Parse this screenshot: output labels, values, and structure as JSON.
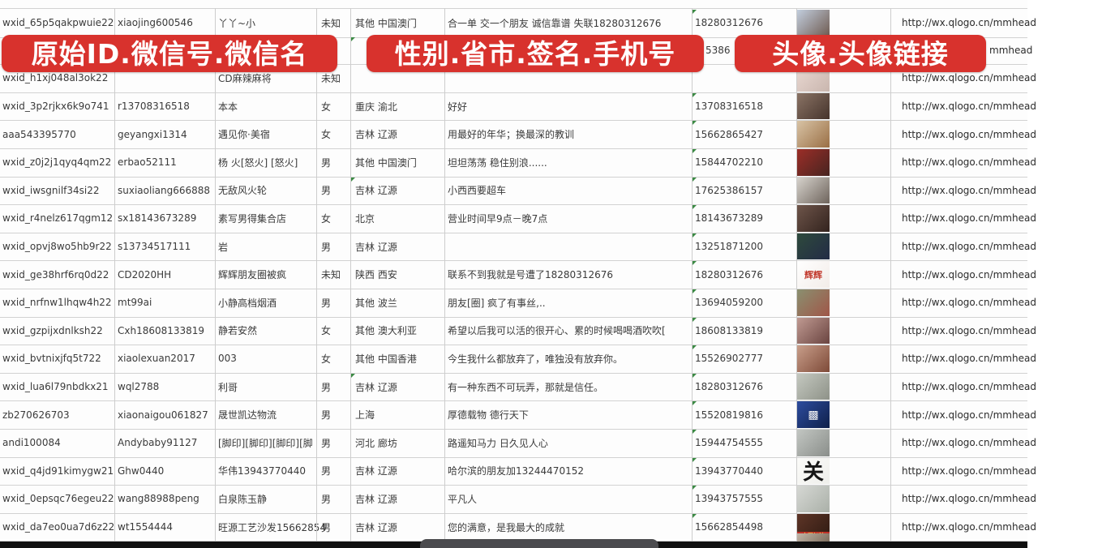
{
  "banners": [
    {
      "label": "原始ID.微信号.微信名"
    },
    {
      "label": "性别.省市.签名.手机号"
    },
    {
      "label": "头像.头像链接"
    }
  ],
  "banner_color": "#d8322d",
  "columns": [
    "原始ID",
    "微信号",
    "微信名",
    "性别",
    "省市",
    "签名",
    "手机号",
    "头像",
    "头像链接"
  ],
  "row2_fragments": {
    "phone_tail": "5386",
    "url_tail": "mmhead"
  },
  "rows": [
    {
      "id": "wxid_65p5qakpwuie22",
      "alias": "xiaojing600546",
      "name": "丫丫~小",
      "gender": "未知",
      "region": "其他 中国澳门",
      "signature": "合一单 交一个朋友 诚信靠谱 失联18280312676",
      "phone": "18280312676",
      "url": "http://wx.qlogo.cn/mmhead",
      "phone_mark": true,
      "avatar": {
        "c1": "#c2cede",
        "c2": "#6e5a50"
      }
    },
    {
      "hidden_by_banner": true,
      "id": "",
      "alias": "",
      "name": "",
      "gender": "",
      "region": "",
      "signature": "",
      "phone": "5386",
      "url": "mmhead",
      "phone_mark": false,
      "region_mark": true,
      "avatar": {
        "c1": "#3f63b0",
        "c2": "#7c90c0"
      }
    },
    {
      "id": "wxid_h1xj048al3ok22",
      "alias": "",
      "name": "CD麻辣麻将",
      "gender": "未知",
      "region": "",
      "signature": "",
      "phone": "",
      "url": "http://wx.qlogo.cn/mmhead",
      "phone_mark": false,
      "avatar": {
        "c1": "#ead9d3",
        "c2": "#c9b6ae"
      }
    },
    {
      "id": "wxid_3p2rjkx6k9o741",
      "alias": "r13708316518",
      "name": "本本",
      "gender": "女",
      "region": "重庆 渝北",
      "signature": "好好",
      "phone": "13708316518",
      "url": "http://wx.qlogo.cn/mmhead",
      "phone_mark": true,
      "avatar": {
        "c1": "#8a7365",
        "c2": "#46342c"
      }
    },
    {
      "id": "aaa543395770",
      "alias": "geyangxi1314",
      "name": "遇见你·美宿",
      "gender": "女",
      "region": "吉林 辽源",
      "signature": "用最好的年华；换最深的教训",
      "phone": "15662865427",
      "url": "http://wx.qlogo.cn/mmhead",
      "phone_mark": true,
      "avatar": {
        "c1": "#d8c3a5",
        "c2": "#9a6f45"
      }
    },
    {
      "id": "wxid_z0j2j1qyq4qm22",
      "alias": "erbao52111",
      "name": "杨 火[怒火] [怒火]",
      "gender": "男",
      "region": "其他 中国澳门",
      "signature": "坦坦荡荡 稳住别浪......",
      "phone": "15844702210",
      "url": "http://wx.qlogo.cn/mmhead",
      "phone_mark": true,
      "avatar": {
        "c1": "#9c2e28",
        "c2": "#472420"
      }
    },
    {
      "id": "wxid_iwsgnilf34si22",
      "alias": "suxiaoliang666888",
      "name": "无敌风火轮",
      "gender": "男",
      "region": "吉林 辽源",
      "signature": "小西西要超车",
      "phone": "17625386157",
      "url": "http://wx.qlogo.cn/mmhead",
      "phone_mark": true,
      "region_mark": true,
      "avatar": {
        "c1": "#d6d2cc",
        "c2": "#6e645c"
      }
    },
    {
      "id": "wxid_r4nelz617qgm12",
      "alias": "sx18143673289",
      "name": "素写男得集合店",
      "gender": "女",
      "region": "北京",
      "signature": "营业时间早9点－晚7点",
      "phone": "18143673289",
      "url": "http://wx.qlogo.cn/mmhead",
      "phone_mark": true,
      "avatar": {
        "c1": "#6e554a",
        "c2": "#33231e"
      }
    },
    {
      "id": "wxid_opvj8wo5hb9r22",
      "alias": "s13734517111",
      "name": "岩",
      "gender": "男",
      "region": "吉林 辽源",
      "signature": "",
      "phone": "13251871200",
      "url": "http://wx.qlogo.cn/mmhead",
      "phone_mark": true,
      "avatar": {
        "c1": "#2e4a3c",
        "c2": "#232b46"
      }
    },
    {
      "id": "wxid_ge38hrf6rq0d22",
      "alias": "CD2020HH",
      "name": "辉辉朋友圈被疯",
      "gender": "未知",
      "region": "陕西 西安",
      "signature": "联系不到我就是号遭了18280312676",
      "phone": "18280312676",
      "url": "http://wx.qlogo.cn/mmhead",
      "phone_mark": true,
      "avatar": {
        "c1": "#ffffff",
        "c2": "#f2ece8",
        "text": "辉辉",
        "tc": "#c23a2e",
        "fs": 11
      }
    },
    {
      "id": "wxid_nrfnw1lhqw4h22",
      "alias": "mt99ai",
      "name": "小静高档烟酒",
      "gender": "男",
      "region": "其他 波兰",
      "signature": "朋友[圈] 疯了有事丝,..",
      "phone": "13694059200",
      "url": "http://wx.qlogo.cn/mmhead",
      "phone_mark": true,
      "avatar": {
        "c1": "#8a9070",
        "c2": "#a05648"
      }
    },
    {
      "id": "wxid_gzpijxdnlksh22",
      "alias": "Cxh18608133819",
      "name": "静若安然",
      "gender": "女",
      "region": "其他 澳大利亚",
      "signature": "希望以后我可以活的很开心、累的时候喝喝酒吹吹[",
      "phone": "18608133819",
      "url": "http://wx.qlogo.cn/mmhead",
      "phone_mark": true,
      "avatar": {
        "c1": "#c09a92",
        "c2": "#6a4440"
      }
    },
    {
      "id": "wxid_bvtnixjfq5t722",
      "alias": "xiaolexuan2017",
      "name": "003",
      "gender": "女",
      "region": "其他 中国香港",
      "signature": "今生我什么都放弃了，唯独没有放弃你。",
      "phone": "15526902777",
      "url": "http://wx.qlogo.cn/mmhead",
      "phone_mark": true,
      "avatar": {
        "c1": "#c89e8a",
        "c2": "#7e4a38"
      }
    },
    {
      "id": "wxid_lua6l79nbdkx21",
      "alias": "wql2788",
      "name": "利哥",
      "gender": "男",
      "region": "吉林 辽源",
      "signature": "有一种东西不可玩弄，那就是信任。",
      "phone": "18280312676",
      "url": "http://wx.qlogo.cn/mmhead",
      "phone_mark": true,
      "region_mark": true,
      "avatar": {
        "c1": "#c4c8c0",
        "c2": "#8e9288"
      }
    },
    {
      "id": "zb270626703",
      "alias": "xiaonaigou061827",
      "name": "晟世凯达物流",
      "gender": "男",
      "region": "上海",
      "signature": "厚德载物 德行天下",
      "phone": "15520819816",
      "url": "http://wx.qlogo.cn/mmhead",
      "phone_mark": true,
      "avatar": {
        "c1": "#2c4c9e",
        "c2": "#10204a",
        "text": "▩",
        "tc": "#f2f2f2",
        "fs": 14
      }
    },
    {
      "id": "andi100084",
      "alias": "Andybaby91127",
      "name": "[脚印][脚印][脚印][脚",
      "gender": "男",
      "region": "河北 廊坊",
      "signature": "路遥知马力 日久见人心",
      "phone": "15944754555",
      "url": "http://wx.qlogo.cn/mmhead",
      "phone_mark": true,
      "avatar": {
        "c1": "#c2c6c2",
        "c2": "#8a8e8a"
      }
    },
    {
      "id": "wxid_q4jd91kimygw21",
      "alias": "Ghw0440",
      "name": "华伟13943770440",
      "gender": "男",
      "region": "吉林 辽源",
      "signature": "哈尔滨的朋友加13244470152",
      "phone": "13943770440",
      "url": "http://wx.qlogo.cn/mmhead",
      "phone_mark": true,
      "avatar": {
        "c1": "#fbfbf9",
        "c2": "#efefeb",
        "text": "关",
        "tc": "#161616",
        "fs": 26
      }
    },
    {
      "id": "wxid_0epsqc76egeu22",
      "alias": "wang88988peng",
      "name": "白泉陈玉静",
      "gender": "男",
      "region": "吉林 辽源",
      "signature": "平凡人",
      "phone": "13943757555",
      "url": "http://wx.qlogo.cn/mmhead",
      "phone_mark": true,
      "avatar": {
        "c1": "#d6d8d4",
        "c2": "#aab0a8"
      }
    },
    {
      "id": "wxid_da7eo0ua7d6z22",
      "alias": "wt1554444",
      "name": "旺源工艺沙发15662854",
      "gender": "男",
      "region": "吉林 辽源",
      "signature": "您的满意，是我最大的成就",
      "phone": "15662854498",
      "url": "http://wx.qlogo.cn/mmhead",
      "phone_mark": true,
      "avatar": {
        "c1": "#5e3527",
        "c2": "#2e1a12",
        "strip": "#c03028",
        "text": "中国加油",
        "tc": "#f5d24a",
        "fs": 7
      }
    }
  ],
  "partial_row_avatar": {
    "c1": "#c0b4a6",
    "c2": "#7e6e5e"
  }
}
